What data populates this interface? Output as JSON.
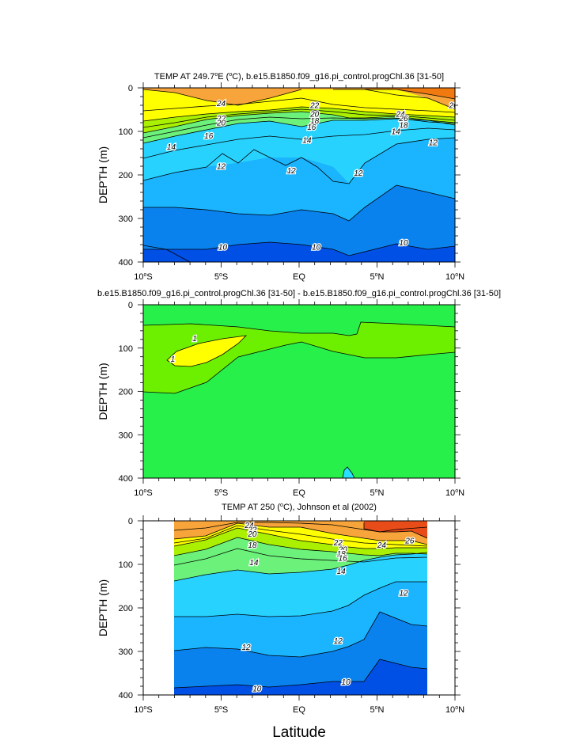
{
  "figure": {
    "xlabel": "Latitude",
    "y_axis_label": "DEPTH (m)",
    "x_ticks": [
      {
        "value": -10,
        "main": "10",
        "sup": "o",
        "hemi": "S"
      },
      {
        "value": -5,
        "main": "5",
        "sup": "o",
        "hemi": "S"
      },
      {
        "value": 0,
        "main": "EQ",
        "sup": "",
        "hemi": ""
      },
      {
        "value": 5,
        "main": "5",
        "sup": "o",
        "hemi": "N"
      },
      {
        "value": 10,
        "main": "10",
        "sup": "o",
        "hemi": "N"
      }
    ],
    "y_ticks": [
      "0",
      "100",
      "200",
      "300",
      "400"
    ],
    "colors": {
      "c10": "#0050e6",
      "c11": "#0a82ee",
      "c12": "#1ab4ff",
      "c13": "#28d2ff",
      "c15": "#6cf27a",
      "c16": "#3cd22a",
      "c18": "#aaf000",
      "c20": "#ffff00",
      "c22": "#ffd24a",
      "c24": "#f7a43a",
      "c26": "#f07a10",
      "c28": "#e84c18",
      "diff_pos": "#ffff00",
      "diff_mid": "#6cf000",
      "diff_zero": "#28f04a",
      "diff_neg": "#28e0ff"
    }
  },
  "chart_data": [
    {
      "type": "contour",
      "title": "TEMP AT 249.7°E (°C), b.e15.B1850.f09_g16.pi_control.progChl.36 [31-50]",
      "title_parts": {
        "a": "TEMP AT 249.7",
        "b": "o",
        "c": "E (",
        "d": "o",
        "e": "C), b.e15.B1850.f09_g16.pi_control.progChl.36 [31-50]"
      },
      "x_range": [
        -10,
        10
      ],
      "y_range": [
        0,
        400
      ],
      "ylabel": "DEPTH (m)",
      "units": "°C",
      "contour_levels": [
        10,
        11,
        12,
        13,
        14,
        15,
        16,
        17,
        18,
        19,
        20,
        21,
        22,
        23,
        24,
        25,
        26,
        27,
        28
      ],
      "isotherms": {
        "lat": [
          -10,
          -8,
          -6,
          -4,
          -2,
          0,
          2,
          3,
          4,
          6,
          8,
          10
        ],
        "t26": [
          null,
          null,
          null,
          null,
          null,
          null,
          null,
          null,
          5,
          5,
          15,
          25
        ],
        "t24": [
          5,
          25,
          40,
          50,
          40,
          5,
          5,
          5,
          15,
          35,
          55,
          65
        ],
        "t20": [
          95,
          85,
          75,
          70,
          65,
          55,
          60,
          65,
          70,
          75,
          80,
          85
        ],
        "t16": [
          130,
          115,
          100,
          88,
          85,
          80,
          88,
          90,
          90,
          85,
          95,
          100
        ],
        "t14": [
          160,
          140,
          125,
          110,
          105,
          120,
          100,
          100,
          100,
          95,
          100,
          110
        ],
        "t12": [
          250,
          220,
          210,
          175,
          170,
          175,
          205,
          240,
          200,
          150,
          125,
          120
        ],
        "t11": [
          275,
          275,
          285,
          295,
          300,
          285,
          300,
          330,
          250,
          200,
          230,
          260
        ],
        "t10": [
          380,
          380,
          370,
          360,
          355,
          360,
          370,
          385,
          360,
          360,
          370,
          365
        ]
      },
      "labels": [
        {
          "text": "24",
          "lat": -5,
          "depth": 35
        },
        {
          "text": "22",
          "lat": -5,
          "depth": 70
        },
        {
          "text": "20",
          "lat": -5,
          "depth": 80
        },
        {
          "text": "16",
          "lat": -5.8,
          "depth": 110
        },
        {
          "text": "14",
          "lat": -8.2,
          "depth": 135
        },
        {
          "text": "12",
          "lat": -5,
          "depth": 180
        },
        {
          "text": "22",
          "lat": 1,
          "depth": 40
        },
        {
          "text": "20",
          "lat": 1,
          "depth": 60
        },
        {
          "text": "18",
          "lat": 1,
          "depth": 75
        },
        {
          "text": "16",
          "lat": 0.8,
          "depth": 90
        },
        {
          "text": "14",
          "lat": 0.5,
          "depth": 120
        },
        {
          "text": "12",
          "lat": -0.5,
          "depth": 190
        },
        {
          "text": "12",
          "lat": 3.8,
          "depth": 195
        },
        {
          "text": "24",
          "lat": 6.5,
          "depth": 60
        },
        {
          "text": "26",
          "lat": 6.7,
          "depth": 70
        },
        {
          "text": "18",
          "lat": 6.7,
          "depth": 85
        },
        {
          "text": "14",
          "lat": 6.2,
          "depth": 100
        },
        {
          "text": "12",
          "lat": 8.6,
          "depth": 125
        },
        {
          "text": "26",
          "lat": 9.9,
          "depth": 40
        },
        {
          "text": "10",
          "lat": -4.9,
          "depth": 365
        },
        {
          "text": "10",
          "lat": 1.1,
          "depth": 365
        },
        {
          "text": "10",
          "lat": 6.7,
          "depth": 355
        }
      ]
    },
    {
      "type": "contour",
      "title": "b.e15.B1850.f09_g16.pi_control.progChl.36 [31-50] - b.e15.B1850.f09_g16.pi_control.progChl.36 [31-50]",
      "x_range": [
        -10,
        10
      ],
      "y_range": [
        0,
        400
      ],
      "ylabel": "DEPTH (m)",
      "contour_levels": [
        -1,
        0,
        1
      ],
      "regions": [
        {
          "name": "difference greater than 1",
          "value": 1
        },
        {
          "name": "difference between 0 and 1",
          "value": 0.5
        },
        {
          "name": "difference near 0",
          "value": 0
        },
        {
          "name": "difference less than 0",
          "value": -0.5
        }
      ],
      "labels": [
        {
          "text": "1",
          "lat": -6.7,
          "depth": 78
        },
        {
          "text": "1",
          "lat": -8.1,
          "depth": 125
        }
      ]
    },
    {
      "type": "contour",
      "title": "TEMP AT 250 (°C), Johnson et al (2002)",
      "title_parts": {
        "a": "TEMP AT 250 (",
        "b": "o",
        "c": "C), Johnson et al (2002)"
      },
      "x_range": [
        -10,
        10
      ],
      "y_range": [
        0,
        400
      ],
      "data_lat_range": [
        -8,
        8.2
      ],
      "ylabel": "DEPTH (m)",
      "units": "°C",
      "contour_levels": [
        10,
        11,
        12,
        13,
        14,
        15,
        16,
        17,
        18,
        19,
        20,
        21,
        22,
        23,
        24,
        25,
        26,
        27,
        28
      ],
      "isotherms": {
        "lat": [
          -8,
          -6,
          -4,
          -2,
          0,
          2,
          4,
          5,
          6,
          7,
          8.2
        ],
        "t26": [
          null,
          null,
          null,
          null,
          null,
          null,
          null,
          5,
          5,
          5,
          40
        ],
        "t24": [
          45,
          40,
          20,
          5,
          5,
          10,
          20,
          25,
          25,
          20,
          15
        ],
        "t22": [
          60,
          55,
          35,
          15,
          15,
          30,
          40,
          45,
          45,
          45,
          55
        ],
        "t20": [
          80,
          70,
          45,
          25,
          40,
          50,
          60,
          60,
          65,
          65,
          70
        ],
        "t18": [
          95,
          85,
          60,
          45,
          55,
          60,
          70,
          75,
          75,
          75,
          75
        ],
        "t14": [
          140,
          125,
          100,
          90,
          100,
          105,
          110,
          105,
          100,
          100,
          95
        ],
        "t13": [
          175,
          170,
          155,
          150,
          140,
          130,
          125,
          125,
          120,
          115,
          115
        ],
        "t12": [
          220,
          220,
          210,
          220,
          215,
          205,
          190,
          155,
          140,
          140,
          140
        ],
        "t11": [
          300,
          290,
          295,
          310,
          315,
          300,
          275,
          210,
          225,
          240,
          245
        ],
        "t10": [
          385,
          380,
          385,
          390,
          385,
          370,
          380,
          320,
          330,
          340,
          345
        ]
      },
      "labels": [
        {
          "text": "24",
          "lat": -3.2,
          "depth": 10
        },
        {
          "text": "22",
          "lat": -3,
          "depth": 20
        },
        {
          "text": "20",
          "lat": -3,
          "depth": 30
        },
        {
          "text": "18",
          "lat": -3,
          "depth": 55
        },
        {
          "text": "14",
          "lat": -2.9,
          "depth": 95
        },
        {
          "text": "12",
          "lat": -3.4,
          "depth": 290
        },
        {
          "text": "10",
          "lat": -2.7,
          "depth": 385
        },
        {
          "text": "22",
          "lat": 2.5,
          "depth": 50
        },
        {
          "text": "20",
          "lat": 2.8,
          "depth": 65
        },
        {
          "text": "18",
          "lat": 2.7,
          "depth": 75
        },
        {
          "text": "16",
          "lat": 2.8,
          "depth": 85
        },
        {
          "text": "14",
          "lat": 2.7,
          "depth": 115
        },
        {
          "text": "12",
          "lat": 2.5,
          "depth": 275
        },
        {
          "text": "10",
          "lat": 3,
          "depth": 370
        },
        {
          "text": "24",
          "lat": 5.3,
          "depth": 55
        },
        {
          "text": "26",
          "lat": 7.1,
          "depth": 45
        },
        {
          "text": "12",
          "lat": 6.7,
          "depth": 165
        }
      ]
    }
  ]
}
